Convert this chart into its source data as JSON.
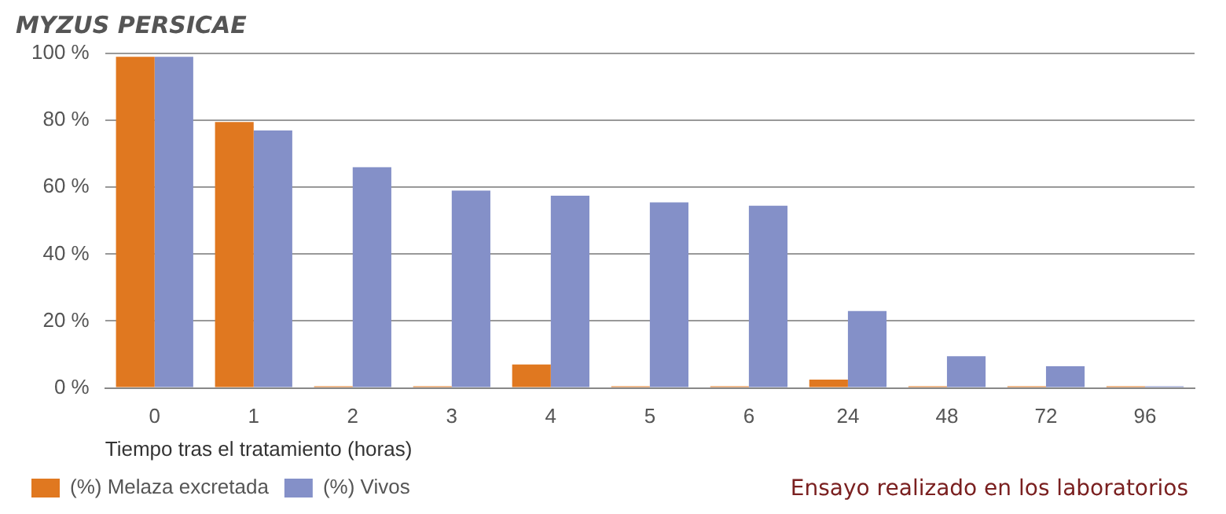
{
  "chart_data": {
    "type": "bar",
    "title": "MYZUS PERSICAE",
    "xlabel": "Tiempo tras el tratamiento (horas)",
    "categories": [
      "0",
      "1",
      "2",
      "3",
      "4",
      "5",
      "6",
      "24",
      "48",
      "72",
      "96"
    ],
    "series": [
      {
        "name": "(%) Melaza excretada",
        "color": "#e07820",
        "values": [
          99,
          79.5,
          0.5,
          0.5,
          7,
          0.5,
          0.5,
          2.5,
          0.5,
          0.5,
          0.5
        ]
      },
      {
        "name": "(%) Vivos",
        "color": "#8490c8",
        "values": [
          99,
          77,
          66,
          59,
          57.5,
          55.5,
          54.5,
          23,
          9.5,
          6.5,
          0.5
        ]
      }
    ],
    "ylim": [
      0,
      100
    ],
    "yticks": [
      {
        "value": 0,
        "label": "0 %"
      },
      {
        "value": 20,
        "label": "20 %"
      },
      {
        "value": 40,
        "label": "40 %"
      },
      {
        "value": 60,
        "label": "60 %"
      },
      {
        "value": 80,
        "label": "80 %"
      },
      {
        "value": 100,
        "label": "100 %"
      }
    ],
    "grid": "y",
    "legend": "bottom left",
    "annotations": [
      "Ensayo realizado en los laboratorios"
    ]
  }
}
